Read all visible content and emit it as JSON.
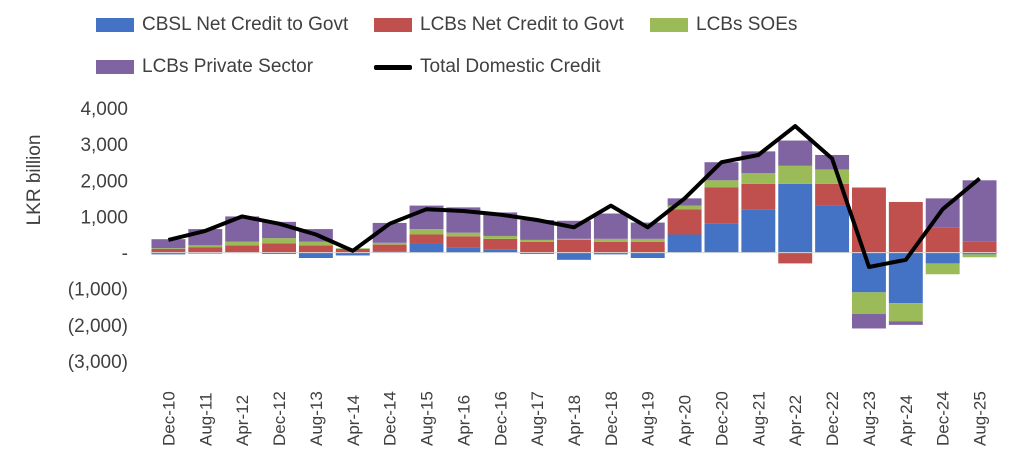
{
  "chart_data": {
    "type": "area",
    "title": "",
    "xlabel": "",
    "ylabel": "LKR billion",
    "ylim": [
      -3000,
      4000
    ],
    "yticks": [
      4000,
      3000,
      2000,
      1000,
      0,
      -1000,
      -2000,
      -3000
    ],
    "ytick_labels": [
      "4,000",
      "3,000",
      "2,000",
      "1,000",
      "-",
      "(1,000)",
      "(2,000)",
      "(3,000)"
    ],
    "xtick_labels": [
      "Dec-10",
      "Aug-11",
      "Apr-12",
      "Dec-12",
      "Aug-13",
      "Apr-14",
      "Dec-14",
      "Aug-15",
      "Apr-16",
      "Dec-16",
      "Aug-17",
      "Apr-18",
      "Dec-18",
      "Aug-19",
      "Apr-20",
      "Dec-20",
      "Aug-21",
      "Apr-22",
      "Dec-22",
      "Aug-23",
      "Apr-24",
      "Dec-24",
      "Aug-25"
    ],
    "legend": "top",
    "series": [
      {
        "name": "CBSL Net Credit to Govt",
        "color": "#4472C4",
        "kind": "stacked-bar",
        "x": [
          "Dec-10",
          "Aug-11",
          "Apr-12",
          "Dec-12",
          "Aug-13",
          "Apr-14",
          "Dec-14",
          "Aug-15",
          "Apr-16",
          "Dec-16",
          "Aug-17",
          "Apr-18",
          "Dec-18",
          "Aug-19",
          "Apr-20",
          "Dec-20",
          "Aug-21",
          "Apr-22",
          "Dec-22",
          "Aug-23",
          "Apr-24",
          "Dec-24",
          "Aug-25"
        ],
        "values": [
          -50,
          -30,
          -10,
          -40,
          -150,
          -80,
          20,
          250,
          150,
          80,
          -40,
          -200,
          -50,
          -150,
          500,
          800,
          1200,
          1900,
          1300,
          -1100,
          -1400,
          -300,
          -50
        ]
      },
      {
        "name": "LCBs Net Credit to Govt",
        "color": "#C0504D",
        "kind": "stacked-bar",
        "x": [
          "Dec-10",
          "Aug-11",
          "Apr-12",
          "Dec-12",
          "Aug-13",
          "Apr-14",
          "Dec-14",
          "Aug-15",
          "Apr-16",
          "Dec-16",
          "Aug-17",
          "Apr-18",
          "Dec-18",
          "Aug-19",
          "Apr-20",
          "Dec-20",
          "Aug-21",
          "Apr-22",
          "Dec-22",
          "Aug-23",
          "Apr-24",
          "Dec-24",
          "Aug-25"
        ],
        "values": [
          100,
          150,
          200,
          250,
          200,
          100,
          200,
          250,
          300,
          300,
          300,
          350,
          300,
          300,
          700,
          1000,
          700,
          -300,
          600,
          1800,
          1400,
          700,
          300
        ]
      },
      {
        "name": "LCBs SOEs",
        "color": "#9BBB59",
        "kind": "stacked-bar",
        "x": [
          "Dec-10",
          "Aug-11",
          "Apr-12",
          "Dec-12",
          "Aug-13",
          "Apr-14",
          "Dec-14",
          "Aug-15",
          "Apr-16",
          "Dec-16",
          "Aug-17",
          "Apr-18",
          "Dec-18",
          "Aug-19",
          "Apr-20",
          "Dec-20",
          "Aug-21",
          "Apr-22",
          "Dec-22",
          "Aug-23",
          "Apr-24",
          "Dec-24",
          "Aug-25"
        ],
        "values": [
          20,
          50,
          100,
          150,
          100,
          20,
          50,
          150,
          100,
          80,
          50,
          30,
          80,
          80,
          100,
          200,
          300,
          500,
          400,
          -600,
          -500,
          -300,
          -80
        ]
      },
      {
        "name": "LCBs Private Sector",
        "color": "#8064A2",
        "kind": "stacked-bar",
        "x": [
          "Dec-10",
          "Aug-11",
          "Apr-12",
          "Dec-12",
          "Aug-13",
          "Apr-14",
          "Dec-14",
          "Aug-15",
          "Apr-16",
          "Dec-16",
          "Aug-17",
          "Apr-18",
          "Dec-18",
          "Aug-19",
          "Apr-20",
          "Dec-20",
          "Aug-21",
          "Apr-22",
          "Dec-22",
          "Aug-23",
          "Apr-24",
          "Dec-24",
          "Aug-25"
        ],
        "values": [
          250,
          450,
          700,
          450,
          350,
          0,
          550,
          650,
          700,
          650,
          550,
          500,
          700,
          450,
          200,
          500,
          600,
          700,
          400,
          -400,
          -100,
          800,
          1700
        ]
      },
      {
        "name": "Total Domestic Credit",
        "color": "#000000",
        "kind": "line",
        "x": [
          "Dec-10",
          "Aug-11",
          "Apr-12",
          "Dec-12",
          "Aug-13",
          "Apr-14",
          "Dec-14",
          "Aug-15",
          "Apr-16",
          "Dec-16",
          "Aug-17",
          "Apr-18",
          "Dec-18",
          "Aug-19",
          "Apr-20",
          "Dec-20",
          "Aug-21",
          "Apr-22",
          "Dec-22",
          "Aug-23",
          "Apr-24",
          "Dec-24",
          "Aug-25"
        ],
        "values": [
          350,
          600,
          1000,
          800,
          500,
          50,
          800,
          1200,
          1150,
          1050,
          900,
          700,
          1300,
          700,
          1500,
          2500,
          2700,
          3500,
          2600,
          -400,
          -200,
          1200,
          2050
        ]
      }
    ]
  }
}
